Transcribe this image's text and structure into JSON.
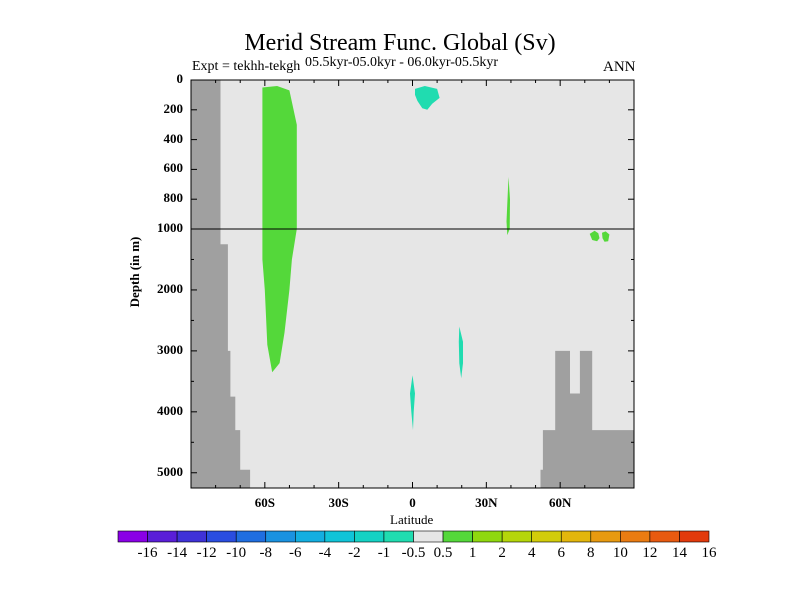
{
  "chart_data": {
    "type": "heatmap",
    "title": "Merid Stream Func. Global (Sv)",
    "experiment_label": "Expt = tekhh-tekgh",
    "period_label": "05.5kyr-05.0kyr - 06.0kyr-05.5kyr",
    "season_label": "ANN",
    "xlabel": "Latitude",
    "ylabel": "Depth (in m)",
    "x_ticks": [
      "60S",
      "30S",
      "0",
      "30N",
      "60N"
    ],
    "x_tick_values": [
      -60,
      -30,
      0,
      30,
      60
    ],
    "xlim": [
      -90,
      90
    ],
    "y_ticks": [
      "0",
      "200",
      "400",
      "600",
      "800",
      "1000",
      "2000",
      "3000",
      "4000",
      "5000"
    ],
    "y_upper_range": [
      0,
      1000
    ],
    "y_lower_range": [
      1000,
      5250
    ],
    "reference_line_depth": 1000,
    "background_color": "#e6e6e6",
    "land_color": "#a0a0a0",
    "contour_levels": [
      "-16",
      "-14",
      "-12",
      "-10",
      "-8",
      "-6",
      "-4",
      "-2",
      "-1",
      "-0.5",
      "0.5",
      "1",
      "2",
      "4",
      "6",
      "8",
      "10",
      "12",
      "14",
      "16"
    ],
    "colorbar_colors": [
      "#8a00e6",
      "#5a1ed8",
      "#3f32d8",
      "#2a4de0",
      "#1f6ee0",
      "#1a92e0",
      "#13aee0",
      "#10c4d8",
      "#14d2c4",
      "#20dcb0",
      "#e6e6e6",
      "#54d83a",
      "#8fd80e",
      "#b5d60a",
      "#d2cc0a",
      "#e3b60c",
      "#e89a10",
      "#ea7c12",
      "#e85a10",
      "#e23a0c"
    ],
    "regions": [
      {
        "name": "southern-ocean-positive-cell",
        "value_range": "0.5 to 1",
        "color": "#54d83a",
        "lat_range": [
          -61,
          -46
        ],
        "depth_range": [
          50,
          3350
        ]
      },
      {
        "name": "equatorial-negative-cell-shallow",
        "value_range": "-1 to -0.5",
        "color": "#20dcb0",
        "lat_range": [
          1,
          11
        ],
        "depth_range": [
          40,
          200
        ]
      },
      {
        "name": "subtropical-north-positive-cell",
        "value_range": "0.5 to 1",
        "color": "#54d83a",
        "lat_range": [
          38,
          40
        ],
        "depth_range": [
          650,
          1100
        ]
      },
      {
        "name": "high-latitude-north-positive-cell",
        "value_range": "0.5 to 1",
        "color": "#54d83a",
        "lat_range": [
          72,
          80
        ],
        "depth_range": [
          1030,
          1200
        ]
      },
      {
        "name": "northern-deep-negative-cell",
        "value_range": "-1 to -0.5",
        "color": "#20dcb0",
        "lat_range": [
          18,
          21
        ],
        "depth_range": [
          2600,
          3450
        ]
      },
      {
        "name": "equatorial-deep-negative-cell",
        "value_range": "-1 to -0.5",
        "color": "#20dcb0",
        "lat_range": [
          -1,
          1
        ],
        "depth_range": [
          3400,
          4300
        ]
      }
    ]
  }
}
